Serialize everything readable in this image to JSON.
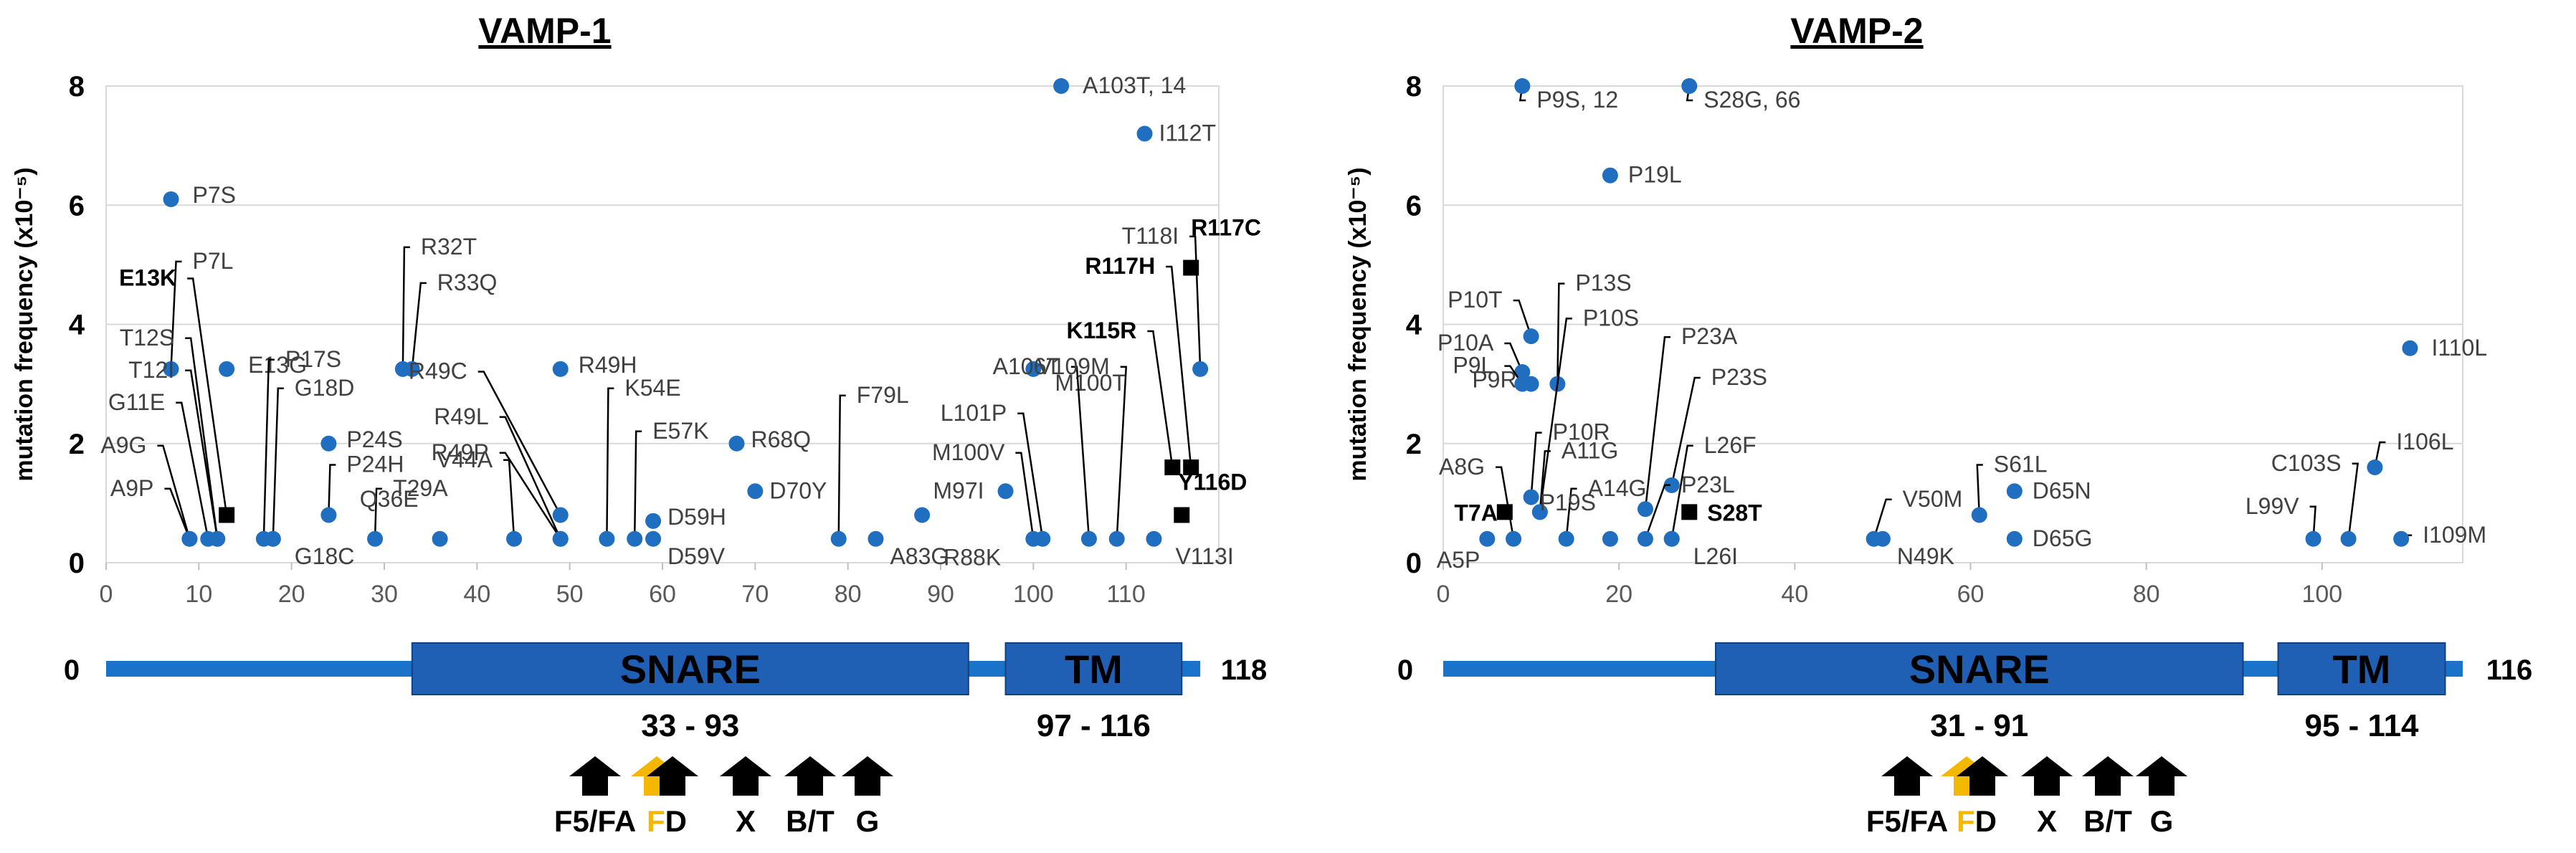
{
  "colors": {
    "point": "#1f6ec0",
    "special": "#000000",
    "domain": "#1f5fb4",
    "bar": "#1a73c8",
    "highlight": "#f5b800",
    "grid": "#d9d9d9"
  },
  "chart_data": [
    {
      "type": "scatter",
      "title": "VAMP-1",
      "ylabel": "mutation frequency (x10⁻⁵)",
      "xlim": [
        0,
        120
      ],
      "ylim": [
        0,
        8
      ],
      "xticks": [
        0,
        10,
        20,
        30,
        40,
        50,
        60,
        70,
        80,
        90,
        100,
        110
      ],
      "yticks": [
        0,
        2,
        4,
        6,
        8
      ],
      "grid": true,
      "points": [
        {
          "x": 7,
          "y": 6.1,
          "label": "P7S"
        },
        {
          "x": 7,
          "y": 3.25,
          "label": "P7L"
        },
        {
          "x": 9,
          "y": 0.4,
          "label": "A9P"
        },
        {
          "x": 9,
          "y": 0.4,
          "label": "A9G"
        },
        {
          "x": 11,
          "y": 0.4,
          "label": "G11E"
        },
        {
          "x": 12,
          "y": 0.4,
          "label": "T12I"
        },
        {
          "x": 12,
          "y": 0.4,
          "label": "T12S"
        },
        {
          "x": 13,
          "y": 0.8,
          "label": "E13K",
          "special": true
        },
        {
          "x": 13,
          "y": 3.25,
          "label": "E13G"
        },
        {
          "x": 17,
          "y": 0.4,
          "label": "P17S"
        },
        {
          "x": 18,
          "y": 0.4,
          "label": "G18D"
        },
        {
          "x": 18,
          "y": 0.4,
          "label": "G18C"
        },
        {
          "x": 24,
          "y": 2.0,
          "label": "P24S"
        },
        {
          "x": 24,
          "y": 0.8,
          "label": "P24H"
        },
        {
          "x": 29,
          "y": 0.4,
          "label": "T29A"
        },
        {
          "x": 32,
          "y": 3.25,
          "label": "R32T"
        },
        {
          "x": 33,
          "y": 3.25,
          "label": "R33Q"
        },
        {
          "x": 36,
          "y": 0.4,
          "label": "Q36E"
        },
        {
          "x": 44,
          "y": 0.4,
          "label": "V44A"
        },
        {
          "x": 49,
          "y": 3.25,
          "label": "R49H"
        },
        {
          "x": 49,
          "y": 0.8,
          "label": "R49C"
        },
        {
          "x": 49,
          "y": 0.4,
          "label": "R49L"
        },
        {
          "x": 49,
          "y": 0.4,
          "label": "R49P"
        },
        {
          "x": 54,
          "y": 0.4,
          "label": "K54E"
        },
        {
          "x": 57,
          "y": 0.4,
          "label": "E57K"
        },
        {
          "x": 59,
          "y": 0.7,
          "label": "D59H"
        },
        {
          "x": 59,
          "y": 0.4,
          "label": "D59V"
        },
        {
          "x": 68,
          "y": 2.0,
          "label": "R68Q"
        },
        {
          "x": 70,
          "y": 1.2,
          "label": "D70Y"
        },
        {
          "x": 79,
          "y": 0.4,
          "label": "F79L"
        },
        {
          "x": 83,
          "y": 0.4,
          "label": "A83G"
        },
        {
          "x": 88,
          "y": 0.8,
          "label": "R88K"
        },
        {
          "x": 97,
          "y": 1.2,
          "label": "M97I"
        },
        {
          "x": 100,
          "y": 3.25,
          "label": "M100T"
        },
        {
          "x": 100,
          "y": 0.4,
          "label": "M100V"
        },
        {
          "x": 101,
          "y": 0.4,
          "label": "L101P"
        },
        {
          "x": 103,
          "y": 8.0,
          "label": "A103T, 14"
        },
        {
          "x": 106,
          "y": 0.4,
          "label": "A106T"
        },
        {
          "x": 109,
          "y": 0.4,
          "label": "V109M"
        },
        {
          "x": 112,
          "y": 7.2,
          "label": "I112T"
        },
        {
          "x": 113,
          "y": 0.4,
          "label": "V113I"
        },
        {
          "x": 115,
          "y": 1.6,
          "label": "K115R",
          "special": true
        },
        {
          "x": 116,
          "y": 0.8,
          "label": "Y116D",
          "special": true
        },
        {
          "x": 117,
          "y": 1.6,
          "label": "R117H",
          "special": true
        },
        {
          "x": 117,
          "y": 4.95,
          "label": "R117C",
          "special": true
        },
        {
          "x": 118,
          "y": 3.25,
          "label": "T118I"
        }
      ],
      "domains": {
        "start": "0",
        "end": "118",
        "snare": {
          "name": "SNARE",
          "from": 33,
          "to": 93,
          "range": "33 - 93"
        },
        "tm": {
          "name": "TM",
          "from": 97,
          "to": 116,
          "range": "97 - 116"
        }
      },
      "motifs": [
        "F5/FA",
        "F",
        "D",
        "X",
        "B/T",
        "G"
      ]
    },
    {
      "type": "scatter",
      "title": "VAMP-2",
      "ylabel": "mutation frequency (x10⁻⁵)",
      "xlim": [
        0,
        116
      ],
      "ylim": [
        0,
        8
      ],
      "xticks": [
        0,
        20,
        40,
        60,
        80,
        100
      ],
      "yticks": [
        0,
        2,
        4,
        6,
        8
      ],
      "grid": true,
      "points": [
        {
          "x": 9,
          "y": 8.0,
          "label": "P9S, 12"
        },
        {
          "x": 28,
          "y": 8.0,
          "label": "S28G, 66"
        },
        {
          "x": 19,
          "y": 6.5,
          "label": "P19L"
        },
        {
          "x": 10,
          "y": 3.8,
          "label": "P10T"
        },
        {
          "x": 13,
          "y": 3.0,
          "label": "P13S"
        },
        {
          "x": 9,
          "y": 3.2,
          "label": "P10A"
        },
        {
          "x": 9,
          "y": 3.0,
          "label": "P9L"
        },
        {
          "x": 10,
          "y": 3.0,
          "label": "P9R"
        },
        {
          "x": 11,
          "y": 0.85,
          "label": "P10S"
        },
        {
          "x": 10,
          "y": 1.1,
          "label": "P10R"
        },
        {
          "x": 8,
          "y": 0.4,
          "label": "A8G"
        },
        {
          "x": 7,
          "y": 0.85,
          "label": "T7A",
          "special": true
        },
        {
          "x": 5,
          "y": 0.4,
          "label": "A5P"
        },
        {
          "x": 11,
          "y": 0.85,
          "label": "A11G"
        },
        {
          "x": 14,
          "y": 0.4,
          "label": "A14G"
        },
        {
          "x": 19,
          "y": 0.4,
          "label": "P19S"
        },
        {
          "x": 23,
          "y": 0.9,
          "label": "P23A"
        },
        {
          "x": 26,
          "y": 1.3,
          "label": "P23S"
        },
        {
          "x": 23,
          "y": 0.4,
          "label": "P23L"
        },
        {
          "x": 26,
          "y": 0.4,
          "label": "L26F"
        },
        {
          "x": 26,
          "y": 0.4,
          "label": "L26I"
        },
        {
          "x": 28,
          "y": 0.85,
          "label": "S28T",
          "special": true
        },
        {
          "x": 49,
          "y": 0.4,
          "label": "V50M"
        },
        {
          "x": 50,
          "y": 0.4,
          "label": "N49K"
        },
        {
          "x": 61,
          "y": 0.8,
          "label": "S61L"
        },
        {
          "x": 65,
          "y": 1.2,
          "label": "D65N"
        },
        {
          "x": 65,
          "y": 0.4,
          "label": "D65G"
        },
        {
          "x": 99,
          "y": 0.4,
          "label": "L99V"
        },
        {
          "x": 103,
          "y": 0.4,
          "label": "C103S"
        },
        {
          "x": 106,
          "y": 1.6,
          "label": "I106L"
        },
        {
          "x": 109,
          "y": 0.4,
          "label": "I109M"
        },
        {
          "x": 110,
          "y": 3.6,
          "label": "I110L"
        }
      ],
      "domains": {
        "start": "0",
        "end": "116",
        "snare": {
          "name": "SNARE",
          "from": 31,
          "to": 91,
          "range": "31 - 91"
        },
        "tm": {
          "name": "TM",
          "from": 95,
          "to": 114,
          "range": "95 - 114"
        }
      },
      "motifs": [
        "F5/FA",
        "F",
        "D",
        "X",
        "B/T",
        "G"
      ]
    }
  ]
}
